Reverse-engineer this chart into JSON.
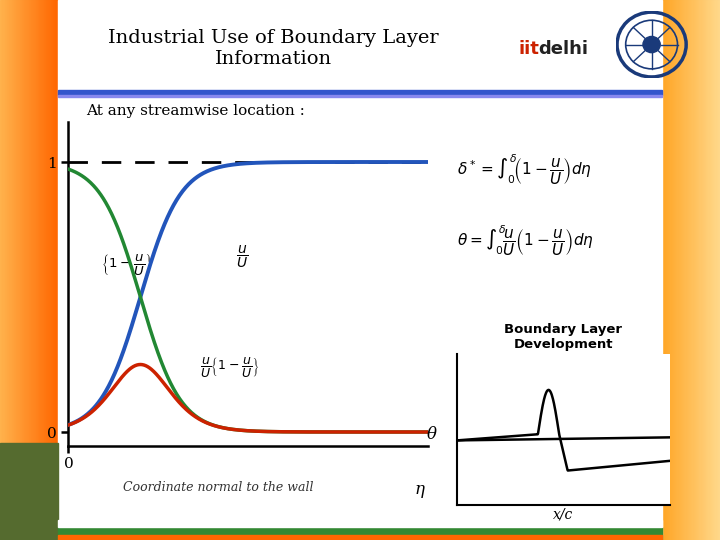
{
  "title": "Industrial Use of Boundary Layer\nInformation",
  "subtitle": "At any streamwise location :",
  "bg_color": "#ffffff",
  "curve_blue_color": "#2255bb",
  "curve_green_color": "#228833",
  "curve_red_color": "#cc2200",
  "xlabel": "Coordinate normal to the wall",
  "eta_label": "η",
  "xlim": [
    0,
    6
  ],
  "ylim": [
    -0.05,
    1.15
  ],
  "formula1": "$\\delta^* = \\int_0^{\\delta}\\!\\left(1 - \\dfrac{u}{U}\\right)d\\eta$",
  "formula2": "$\\theta = \\int_0^{\\delta}\\!\\dfrac{u}{U}\\left(1-\\dfrac{u}{U}\\right)d\\eta$",
  "label_1u": "$\\left\\{1-\\dfrac{u}{U}\\right\\}$",
  "label_u": "$\\dfrac{u}{U}$",
  "label_uu": "$\\dfrac{u}{U}\\left\\{1-\\dfrac{u}{U}\\right\\}$",
  "bl_title": "Boundary Layer\nDevelopment",
  "bl_xlabel": "x/c",
  "bl_ylabel": "θ",
  "left_bg": "#f5dfa0",
  "right_bg": "#f5dfa0",
  "iit_color": "#cc2200",
  "delhi_color": "#222222",
  "header_line_color": "#4444cc",
  "header_line2_color": "#8888dd"
}
